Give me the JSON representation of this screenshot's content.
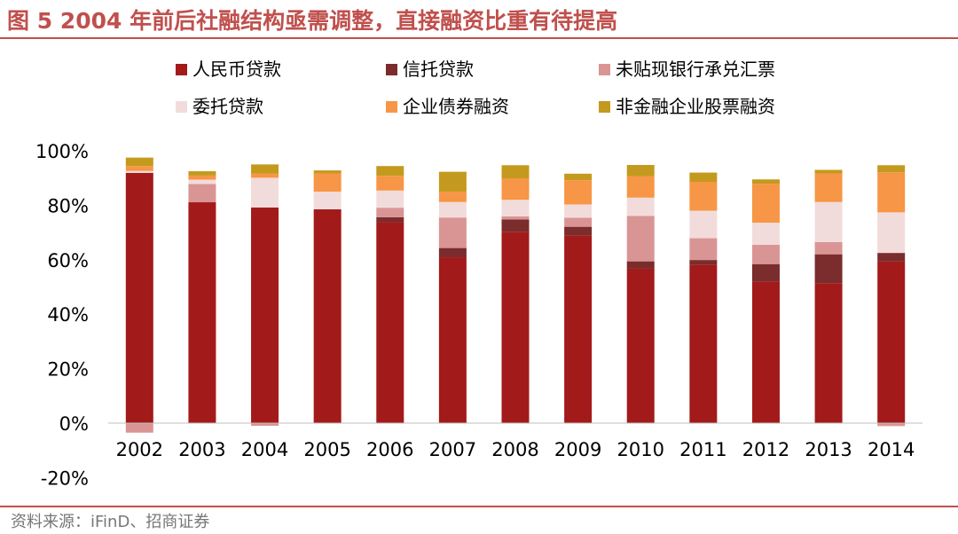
{
  "figure": {
    "title": "图 5 2004 年前后社融结构亟需调整，直接融资比重有待提高",
    "source": "资料来源：iFinD、招商证券"
  },
  "colors": {
    "accent": "#c0504d",
    "axis": "#bfbfbf"
  },
  "chart_data": {
    "type": "bar",
    "stacked": true,
    "title": "",
    "xlabel": "",
    "ylabel": "",
    "ylim": [
      -20,
      100
    ],
    "yticks": [
      -20,
      0,
      20,
      40,
      60,
      80,
      100
    ],
    "ytick_suffix": "%",
    "legend_position": "top",
    "categories": [
      "2002",
      "2003",
      "2004",
      "2005",
      "2006",
      "2007",
      "2008",
      "2009",
      "2010",
      "2011",
      "2012",
      "2013",
      "2014"
    ],
    "series": [
      {
        "name": "人民币贷款",
        "color": "#a31a1a",
        "values": [
          91.9,
          81.1,
          79.2,
          78.5,
          73.8,
          60.9,
          70.3,
          69.0,
          56.7,
          58.2,
          52.0,
          51.4,
          59.4
        ]
      },
      {
        "name": "信托贷款",
        "color": "#7b2c2c",
        "values": [
          0,
          0,
          0,
          0,
          1.8,
          3.4,
          4.5,
          3.1,
          2.7,
          1.7,
          6.4,
          10.6,
          3.1
        ]
      },
      {
        "name": "未贴现银行承兑汇票",
        "color": "#d99594",
        "values": [
          -3.5,
          6.7,
          -1.0,
          0,
          3.5,
          11.2,
          1.1,
          3.3,
          16.7,
          8.0,
          7.1,
          4.5,
          -1.1
        ]
      },
      {
        "name": "委托贷款",
        "color": "#f2dcdb",
        "values": [
          0.7,
          1.6,
          10.9,
          6.5,
          6.3,
          5.7,
          6.1,
          4.9,
          6.7,
          10.1,
          8.1,
          14.7,
          14.9
        ]
      },
      {
        "name": "企业债券融资",
        "color": "#f79646",
        "values": [
          1.8,
          1.5,
          1.6,
          6.7,
          5.4,
          3.8,
          7.9,
          8.9,
          7.9,
          10.6,
          14.3,
          10.5,
          14.7
        ]
      },
      {
        "name": "非金融企业股票融资",
        "color": "#c49a1e",
        "values": [
          3.1,
          1.6,
          3.3,
          1.1,
          3.6,
          7.3,
          4.8,
          2.4,
          4.1,
          3.4,
          1.6,
          1.3,
          2.6
        ]
      }
    ]
  }
}
